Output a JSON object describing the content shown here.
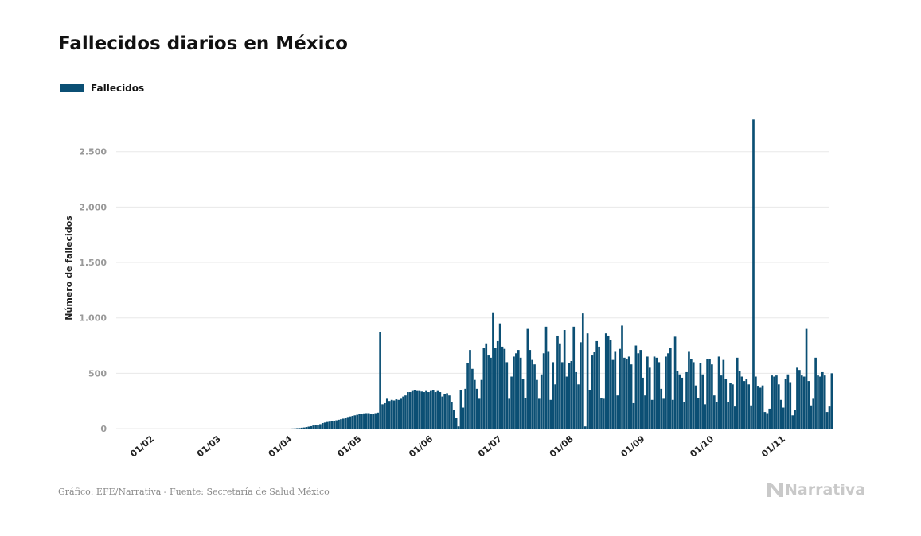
{
  "page": {
    "title": "Fallecidos diarios en México"
  },
  "legend": {
    "label": "Fallecidos"
  },
  "colors": {
    "bar": "#0b4f74",
    "grid": "#e8e8e8",
    "tick": "#9a9a9a",
    "axis_text": "#222222",
    "footer": "#8a8a8a",
    "brand": "#c9c9c9"
  },
  "footer": {
    "source": "Gráfico: EFE/Narrativa - Fuente: Secretaría de Salud México",
    "brand": "Narrativa",
    "brand_icon": "narrativa-n-icon"
  },
  "chart_data": {
    "type": "bar",
    "title": "Fallecidos diarios en México",
    "xlabel": "",
    "ylabel": "Número de fallecidos",
    "ylim": [
      0,
      2900
    ],
    "yticks": [
      0,
      500,
      1000,
      1500,
      2000,
      2500
    ],
    "ytick_labels": [
      "0",
      "500",
      "1.000",
      "1.500",
      "2.000",
      "2.500"
    ],
    "xticks": [
      "2020-02-01",
      "2020-03-01",
      "2020-04-01",
      "2020-05-01",
      "2020-06-01",
      "2020-07-01",
      "2020-08-01",
      "2020-09-01",
      "2020-10-01",
      "2020-11-01"
    ],
    "xtick_labels": [
      "01/02",
      "01/03",
      "01/04",
      "01/05",
      "01/06",
      "01/07",
      "01/08",
      "01/09",
      "01/10",
      "01/11"
    ],
    "grid": true,
    "legend_position": "top-left",
    "series": [
      {
        "name": "Fallecidos",
        "start_date": "2020-01-12",
        "values": [
          0,
          0,
          0,
          0,
          0,
          0,
          0,
          0,
          0,
          0,
          0,
          0,
          0,
          0,
          0,
          0,
          0,
          0,
          0,
          0,
          0,
          0,
          0,
          0,
          0,
          0,
          0,
          0,
          0,
          0,
          0,
          0,
          0,
          0,
          0,
          0,
          0,
          0,
          0,
          0,
          0,
          0,
          0,
          0,
          0,
          0,
          0,
          0,
          0,
          0,
          0,
          0,
          0,
          0,
          0,
          0,
          0,
          0,
          0,
          0,
          0,
          0,
          0,
          0,
          0,
          0,
          0,
          0,
          0,
          0,
          0,
          0,
          0,
          0,
          0,
          0,
          0,
          0,
          0,
          0,
          1,
          2,
          4,
          5,
          8,
          10,
          14,
          18,
          22,
          28,
          30,
          33,
          40,
          50,
          55,
          60,
          63,
          68,
          72,
          75,
          80,
          85,
          90,
          100,
          105,
          110,
          115,
          120,
          125,
          130,
          135,
          138,
          140,
          140,
          135,
          130,
          140,
          145,
          870,
          220,
          230,
          270,
          250,
          260,
          255,
          265,
          260,
          270,
          290,
          300,
          330,
          330,
          340,
          345,
          340,
          340,
          335,
          330,
          340,
          330,
          340,
          345,
          330,
          340,
          330,
          290,
          310,
          320,
          300,
          240,
          170,
          100,
          20,
          350,
          190,
          360,
          590,
          710,
          540,
          440,
          360,
          270,
          440,
          730,
          770,
          660,
          640,
          1050,
          730,
          790,
          950,
          740,
          720,
          600,
          270,
          470,
          650,
          680,
          710,
          640,
          450,
          280,
          900,
          710,
          620,
          580,
          440,
          270,
          490,
          680,
          920,
          700,
          260,
          600,
          400,
          840,
          770,
          600,
          890,
          470,
          590,
          610,
          920,
          510,
          400,
          780,
          1040,
          20,
          860,
          350,
          660,
          690,
          790,
          740,
          280,
          270,
          860,
          840,
          800,
          620,
          700,
          300,
          720,
          930,
          640,
          630,
          650,
          580,
          230,
          750,
          680,
          710,
          460,
          300,
          650,
          550,
          260,
          650,
          640,
          600,
          360,
          270,
          650,
          680,
          730,
          260,
          830,
          520,
          490,
          460,
          240,
          510,
          700,
          630,
          600,
          390,
          280,
          590,
          490,
          220,
          630,
          630,
          580,
          300,
          240,
          650,
          480,
          620,
          450,
          240,
          410,
          400,
          200,
          640,
          520,
          470,
          430,
          450,
          400,
          210,
          2790,
          470,
          380,
          370,
          390,
          150,
          140,
          180,
          480,
          470,
          480,
          400,
          260,
          190,
          450,
          490,
          420,
          120,
          170,
          550,
          530,
          480,
          470,
          900,
          430,
          210,
          270,
          640,
          480,
          470,
          510,
          480,
          150,
          200,
          500
        ]
      }
    ]
  }
}
